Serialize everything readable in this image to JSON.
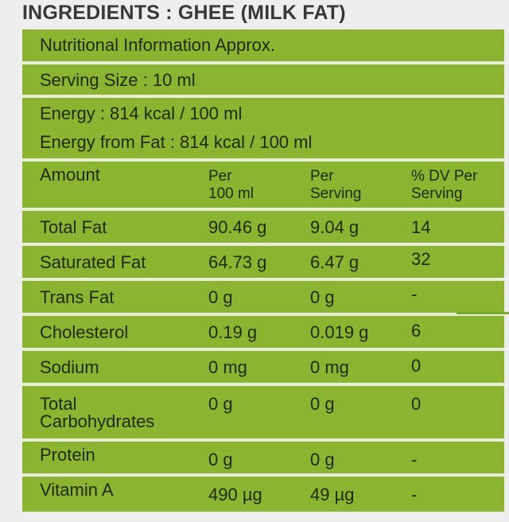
{
  "ingredients_title": "INGREDIENTS : GHEE (MILK FAT)",
  "nutrition_heading": "Nutritional Information Approx.",
  "serving_size": "Serving Size : 10 ml",
  "energy": "Energy : 814 kcal / 100 ml",
  "energy_from_fat": "Energy from Fat : 814 kcal / 100 ml",
  "columns": {
    "amount": "Amount",
    "per100_line1": "Per",
    "per100_line2": "100 ml",
    "perserv_line1": "Per",
    "perserv_line2": "Serving",
    "dv_line1": "% DV Per",
    "dv_line2": "Serving"
  },
  "rows": [
    {
      "name": "Total Fat",
      "per100": "90.46 g",
      "perserving": "9.04 g",
      "dv": "14"
    },
    {
      "name": "Saturated Fat",
      "per100": "64.73 g",
      "perserving": "6.47 g",
      "dv": "32"
    },
    {
      "name": "Trans Fat",
      "per100": "0 g",
      "perserving": "0 g",
      "dv": "-"
    },
    {
      "name": "Cholesterol",
      "per100": "0.19 g",
      "perserving": "0.019 g",
      "dv": "6"
    },
    {
      "name": "Sodium",
      "per100": "0 mg",
      "perserving": "0 mg",
      "dv": "0"
    },
    {
      "name_line1": "Total",
      "name_line2": "Carbohydrates",
      "per100": "0 g",
      "perserving": "0 g",
      "dv": "0"
    },
    {
      "name": "Protein",
      "per100": "0 g",
      "perserving": "0 g",
      "dv": "-"
    },
    {
      "name": "Vitamin A",
      "per100": "490 µg",
      "perserving": "49 µg",
      "dv": "-"
    }
  ],
  "colors": {
    "panel_green": "#8bb531",
    "separator": "#e8eedb",
    "text_dark": "#1e2a0c",
    "title_text": "#383838",
    "background": "#eeeeee"
  }
}
